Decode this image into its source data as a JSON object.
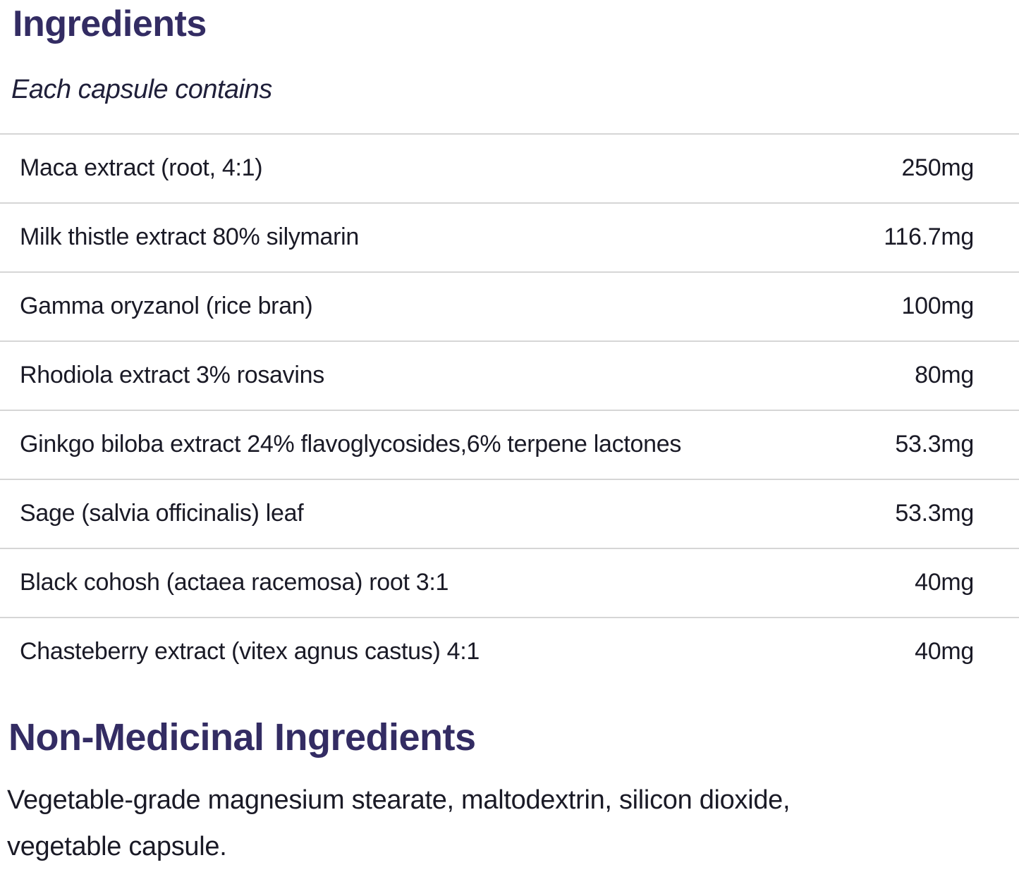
{
  "page": {
    "title": "Ingredients",
    "subtitle": "Each capsule contains"
  },
  "ingredients": [
    {
      "name": "Maca extract (root, 4:1)",
      "amount": "250mg"
    },
    {
      "name": "Milk thistle extract 80% silymarin",
      "amount": "116.7mg"
    },
    {
      "name": "Gamma oryzanol (rice bran)",
      "amount": "100mg"
    },
    {
      "name": "Rhodiola extract 3% rosavins",
      "amount": "80mg"
    },
    {
      "name": "Ginkgo biloba extract 24% flavoglycosides,6% terpene lactones",
      "amount": "53.3mg"
    },
    {
      "name": "Sage (salvia officinalis) leaf",
      "amount": "53.3mg"
    },
    {
      "name": "Black cohosh (actaea racemosa) root 3:1",
      "amount": "40mg"
    },
    {
      "name": "Chasteberry extract (vitex agnus castus) 4:1",
      "amount": "40mg"
    }
  ],
  "non_medicinal": {
    "title": "Non-Medicinal Ingredients",
    "body": "Vegetable-grade magnesium stearate, maltodextrin, silicon dioxide, vegetable capsule."
  },
  "colors": {
    "heading": "#332c63",
    "text": "#1a1a26",
    "divider": "#d6d6d6",
    "background": "#ffffff"
  }
}
